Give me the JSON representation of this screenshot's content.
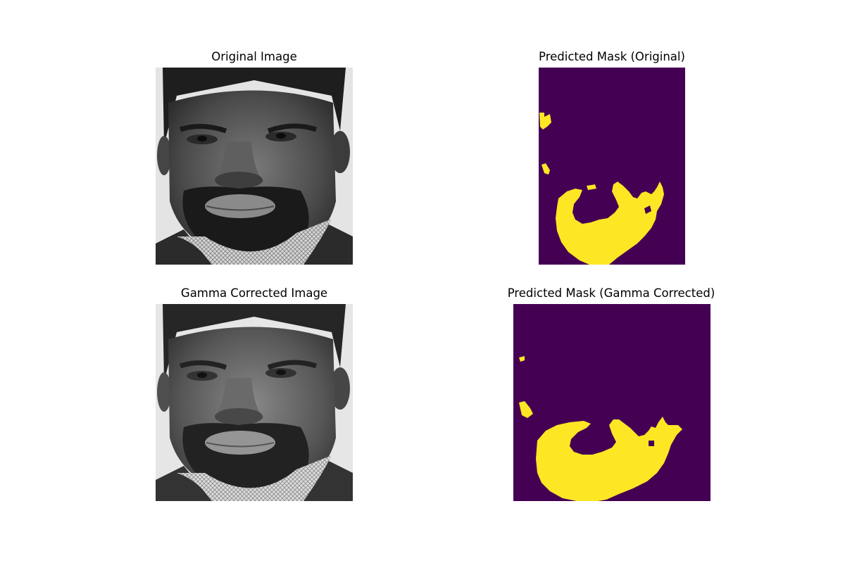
{
  "panels": {
    "original_image": {
      "title": "Original Image",
      "content": "grayscale-face-photo"
    },
    "mask_original": {
      "title": "Predicted Mask (Original)",
      "content": "segmentation-mask"
    },
    "gamma_image": {
      "title": "Gamma Corrected Image",
      "content": "grayscale-face-photo"
    },
    "mask_gamma": {
      "title": "Predicted Mask (Gamma Corrected)",
      "content": "segmentation-mask"
    }
  },
  "colors": {
    "mask_background": "#440154",
    "mask_foreground": "#fde725"
  }
}
